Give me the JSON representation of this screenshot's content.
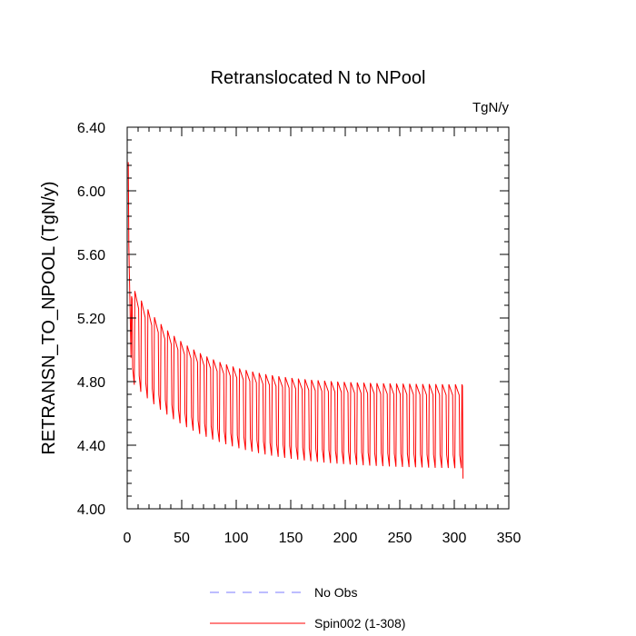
{
  "chart_data": {
    "type": "line",
    "title": "Retranslocated N to NPool",
    "units_label": "TgN/y",
    "xlabel": "",
    "ylabel": "RETRANSN_TO_NPOOL  (TgN/y)",
    "xlim": [
      0,
      350
    ],
    "ylim": [
      4.0,
      6.4
    ],
    "x_ticks": [
      0,
      50,
      100,
      150,
      200,
      250,
      300,
      350
    ],
    "x_tick_labels": [
      "0",
      "50",
      "100",
      "150",
      "200",
      "250",
      "300",
      "350"
    ],
    "y_ticks": [
      4.0,
      4.4,
      4.8,
      5.2,
      5.6,
      6.0,
      6.4
    ],
    "y_tick_labels": [
      "4.00",
      "4.40",
      "4.80",
      "5.20",
      "5.60",
      "6.00",
      "6.40"
    ],
    "series": [
      {
        "name": "No Obs",
        "color": "#7b7bff",
        "dash": "dashed",
        "values": []
      },
      {
        "name": "Spin002 (1-308)",
        "color": "#ff0000",
        "dash": "solid",
        "x_range": [
          1,
          308
        ],
        "cycle_length": 6,
        "start_value": 6.18,
        "max_envelope": {
          "late": 4.78,
          "initial_drop": 5.45,
          "decay": 55
        },
        "min_envelope": {
          "late": 4.22,
          "initial": 4.8,
          "decay": 70
        },
        "end_value": 4.19
      }
    ],
    "legend": {
      "position": "bottom-center",
      "entries": [
        "No Obs",
        "Spin002 (1-308)"
      ]
    }
  }
}
